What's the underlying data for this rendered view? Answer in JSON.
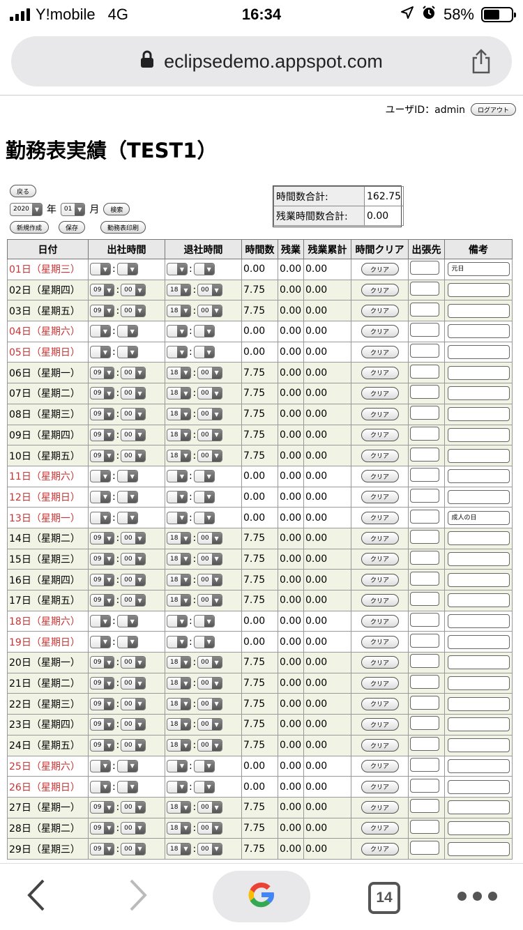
{
  "status": {
    "carrier": "Y!mobile",
    "network": "4G",
    "time": "16:34",
    "battery": "58%",
    "battery_level": 0.58
  },
  "browser": {
    "url": "eclipsedemo.appspot.com",
    "tab_count": "14"
  },
  "header": {
    "user_label": "ユーザID：",
    "user_id": "admin",
    "logout_label": "ログアウト"
  },
  "page": {
    "title": "勤務表実績（TEST1）"
  },
  "controls": {
    "back_label": "戻る",
    "year_value": "2020",
    "year_unit": "年",
    "month_value": "01",
    "month_unit": "月",
    "search_label": "検索",
    "new_label": "新規作成",
    "save_label": "保存",
    "print_label": "勤務表印刷"
  },
  "totals": {
    "hours_label": "時間数合計:",
    "hours_value": "162.75",
    "overtime_label": "残業時間数合計:",
    "overtime_value": "0.00"
  },
  "table": {
    "headers": [
      "日付",
      "出社時間",
      "退社時間",
      "時間数",
      "残業",
      "残業累計",
      "時間クリア",
      "出張先",
      "備考"
    ],
    "clear_label": "クリア",
    "sep": ":",
    "rows": [
      {
        "date": "01日（星期三）",
        "holiday": true,
        "in_h": "",
        "in_m": "",
        "out_h": "",
        "out_m": "",
        "hours": "0.00",
        "ot": "0.00",
        "ot_total": "0.00",
        "note": "元日"
      },
      {
        "date": "02日（星期四）",
        "holiday": false,
        "in_h": "09",
        "in_m": "00",
        "out_h": "18",
        "out_m": "00",
        "hours": "7.75",
        "ot": "0.00",
        "ot_total": "0.00",
        "note": ""
      },
      {
        "date": "03日（星期五）",
        "holiday": false,
        "in_h": "09",
        "in_m": "00",
        "out_h": "18",
        "out_m": "00",
        "hours": "7.75",
        "ot": "0.00",
        "ot_total": "0.00",
        "note": ""
      },
      {
        "date": "04日（星期六）",
        "holiday": true,
        "in_h": "",
        "in_m": "",
        "out_h": "",
        "out_m": "",
        "hours": "0.00",
        "ot": "0.00",
        "ot_total": "0.00",
        "note": ""
      },
      {
        "date": "05日（星期日）",
        "holiday": true,
        "in_h": "",
        "in_m": "",
        "out_h": "",
        "out_m": "",
        "hours": "0.00",
        "ot": "0.00",
        "ot_total": "0.00",
        "note": ""
      },
      {
        "date": "06日（星期一）",
        "holiday": false,
        "in_h": "09",
        "in_m": "00",
        "out_h": "18",
        "out_m": "00",
        "hours": "7.75",
        "ot": "0.00",
        "ot_total": "0.00",
        "note": ""
      },
      {
        "date": "07日（星期二）",
        "holiday": false,
        "in_h": "09",
        "in_m": "00",
        "out_h": "18",
        "out_m": "00",
        "hours": "7.75",
        "ot": "0.00",
        "ot_total": "0.00",
        "note": ""
      },
      {
        "date": "08日（星期三）",
        "holiday": false,
        "in_h": "09",
        "in_m": "00",
        "out_h": "18",
        "out_m": "00",
        "hours": "7.75",
        "ot": "0.00",
        "ot_total": "0.00",
        "note": ""
      },
      {
        "date": "09日（星期四）",
        "holiday": false,
        "in_h": "09",
        "in_m": "00",
        "out_h": "18",
        "out_m": "00",
        "hours": "7.75",
        "ot": "0.00",
        "ot_total": "0.00",
        "note": ""
      },
      {
        "date": "10日（星期五）",
        "holiday": false,
        "in_h": "09",
        "in_m": "00",
        "out_h": "18",
        "out_m": "00",
        "hours": "7.75",
        "ot": "0.00",
        "ot_total": "0.00",
        "note": ""
      },
      {
        "date": "11日（星期六）",
        "holiday": true,
        "in_h": "",
        "in_m": "",
        "out_h": "",
        "out_m": "",
        "hours": "0.00",
        "ot": "0.00",
        "ot_total": "0.00",
        "note": ""
      },
      {
        "date": "12日（星期日）",
        "holiday": true,
        "in_h": "",
        "in_m": "",
        "out_h": "",
        "out_m": "",
        "hours": "0.00",
        "ot": "0.00",
        "ot_total": "0.00",
        "note": ""
      },
      {
        "date": "13日（星期一）",
        "holiday": true,
        "in_h": "",
        "in_m": "",
        "out_h": "",
        "out_m": "",
        "hours": "0.00",
        "ot": "0.00",
        "ot_total": "0.00",
        "note": "成人の日"
      },
      {
        "date": "14日（星期二）",
        "holiday": false,
        "in_h": "09",
        "in_m": "00",
        "out_h": "18",
        "out_m": "00",
        "hours": "7.75",
        "ot": "0.00",
        "ot_total": "0.00",
        "note": ""
      },
      {
        "date": "15日（星期三）",
        "holiday": false,
        "in_h": "09",
        "in_m": "00",
        "out_h": "18",
        "out_m": "00",
        "hours": "7.75",
        "ot": "0.00",
        "ot_total": "0.00",
        "note": ""
      },
      {
        "date": "16日（星期四）",
        "holiday": false,
        "in_h": "09",
        "in_m": "00",
        "out_h": "18",
        "out_m": "00",
        "hours": "7.75",
        "ot": "0.00",
        "ot_total": "0.00",
        "note": ""
      },
      {
        "date": "17日（星期五）",
        "holiday": false,
        "in_h": "09",
        "in_m": "00",
        "out_h": "18",
        "out_m": "00",
        "hours": "7.75",
        "ot": "0.00",
        "ot_total": "0.00",
        "note": ""
      },
      {
        "date": "18日（星期六）",
        "holiday": true,
        "in_h": "",
        "in_m": "",
        "out_h": "",
        "out_m": "",
        "hours": "0.00",
        "ot": "0.00",
        "ot_total": "0.00",
        "note": ""
      },
      {
        "date": "19日（星期日）",
        "holiday": true,
        "in_h": "",
        "in_m": "",
        "out_h": "",
        "out_m": "",
        "hours": "0.00",
        "ot": "0.00",
        "ot_total": "0.00",
        "note": ""
      },
      {
        "date": "20日（星期一）",
        "holiday": false,
        "in_h": "09",
        "in_m": "00",
        "out_h": "18",
        "out_m": "00",
        "hours": "7.75",
        "ot": "0.00",
        "ot_total": "0.00",
        "note": ""
      },
      {
        "date": "21日（星期二）",
        "holiday": false,
        "in_h": "09",
        "in_m": "00",
        "out_h": "18",
        "out_m": "00",
        "hours": "7.75",
        "ot": "0.00",
        "ot_total": "0.00",
        "note": ""
      },
      {
        "date": "22日（星期三）",
        "holiday": false,
        "in_h": "09",
        "in_m": "00",
        "out_h": "18",
        "out_m": "00",
        "hours": "7.75",
        "ot": "0.00",
        "ot_total": "0.00",
        "note": ""
      },
      {
        "date": "23日（星期四）",
        "holiday": false,
        "in_h": "09",
        "in_m": "00",
        "out_h": "18",
        "out_m": "00",
        "hours": "7.75",
        "ot": "0.00",
        "ot_total": "0.00",
        "note": ""
      },
      {
        "date": "24日（星期五）",
        "holiday": false,
        "in_h": "09",
        "in_m": "00",
        "out_h": "18",
        "out_m": "00",
        "hours": "7.75",
        "ot": "0.00",
        "ot_total": "0.00",
        "note": ""
      },
      {
        "date": "25日（星期六）",
        "holiday": true,
        "in_h": "",
        "in_m": "",
        "out_h": "",
        "out_m": "",
        "hours": "0.00",
        "ot": "0.00",
        "ot_total": "0.00",
        "note": ""
      },
      {
        "date": "26日（星期日）",
        "holiday": true,
        "in_h": "",
        "in_m": "",
        "out_h": "",
        "out_m": "",
        "hours": "0.00",
        "ot": "0.00",
        "ot_total": "0.00",
        "note": ""
      },
      {
        "date": "27日（星期一）",
        "holiday": false,
        "in_h": "09",
        "in_m": "00",
        "out_h": "18",
        "out_m": "00",
        "hours": "7.75",
        "ot": "0.00",
        "ot_total": "0.00",
        "note": ""
      },
      {
        "date": "28日（星期二）",
        "holiday": false,
        "in_h": "09",
        "in_m": "00",
        "out_h": "18",
        "out_m": "00",
        "hours": "7.75",
        "ot": "0.00",
        "ot_total": "0.00",
        "note": ""
      },
      {
        "date": "29日（星期三）",
        "holiday": false,
        "in_h": "09",
        "in_m": "00",
        "out_h": "18",
        "out_m": "00",
        "hours": "7.75",
        "ot": "0.00",
        "ot_total": "0.00",
        "note": ""
      }
    ]
  },
  "colors": {
    "holiday_text": "#cc3333",
    "weekday_row_bg": "#f1f3e4",
    "header_bg": "#e8e8e8"
  },
  "icons": {
    "lock": "lock-icon",
    "share": "share-icon",
    "location": "location-arrow-icon",
    "alarm": "alarm-icon",
    "google": "google-icon"
  }
}
